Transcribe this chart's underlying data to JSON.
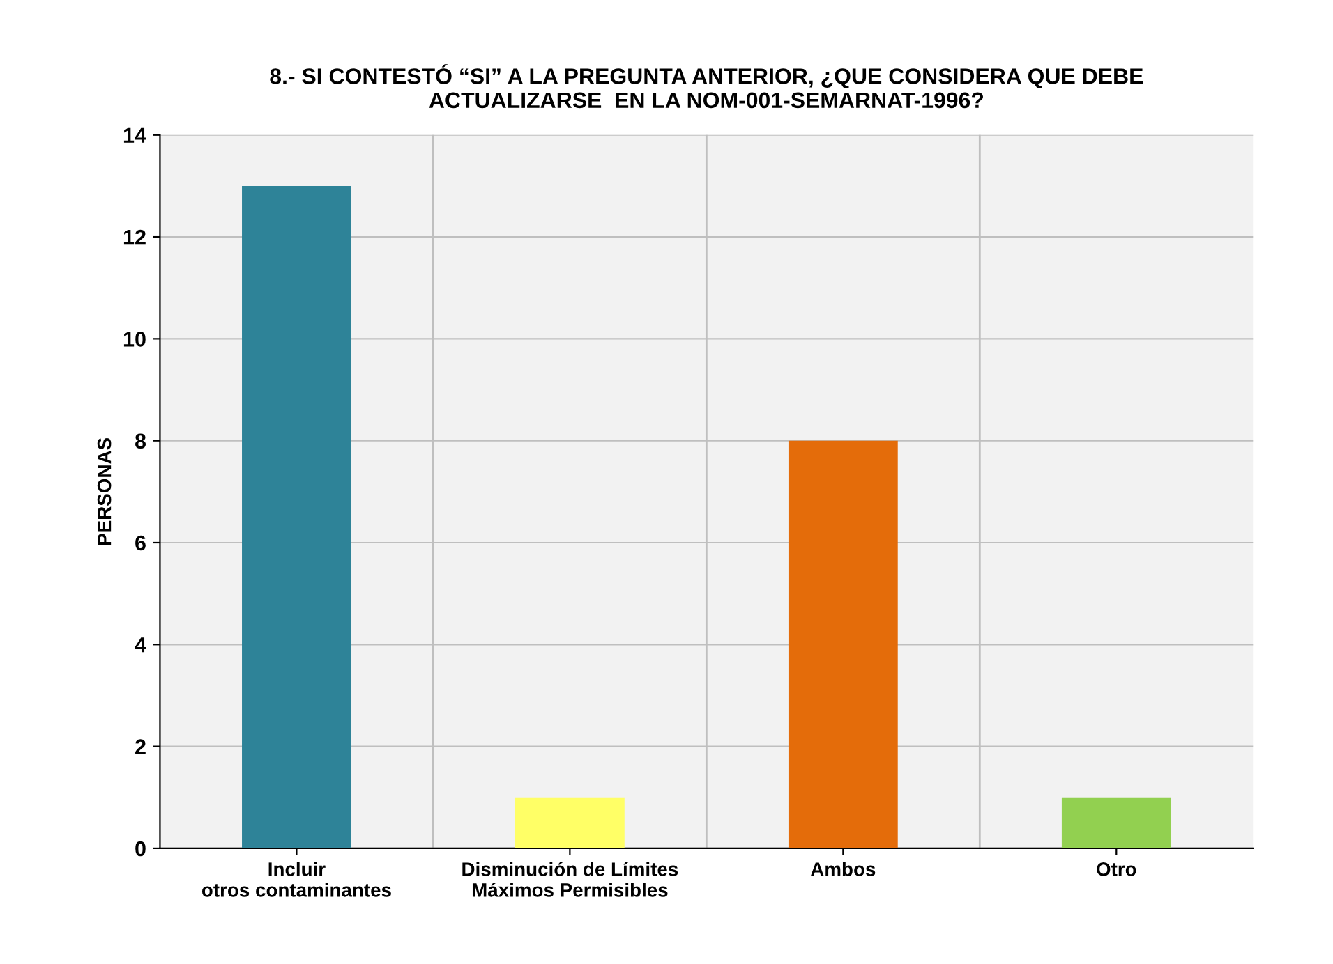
{
  "chart_data": {
    "type": "bar",
    "title": "8.- SI CONTESTÓ “SI” A LA PREGUNTA ANTERIOR, ¿QUE CONSIDERA QUE DEBE\nACTUALIZARSE  EN LA NOM-001-SEMARNAT-1996?",
    "ylabel": "PERSONAS",
    "categories": [
      "Incluir\notros contaminantes",
      "Disminución de Límites\nMáximos Permisibles",
      "Ambos",
      "Otro"
    ],
    "values": [
      13,
      1,
      8,
      1
    ],
    "colors": [
      "#2e8398",
      "#ffff66",
      "#e46c0a",
      "#92d050"
    ],
    "ylim": [
      0,
      14
    ],
    "yticks": [
      0,
      2,
      4,
      6,
      8,
      10,
      12,
      14
    ],
    "grid": "y",
    "legend": false
  }
}
